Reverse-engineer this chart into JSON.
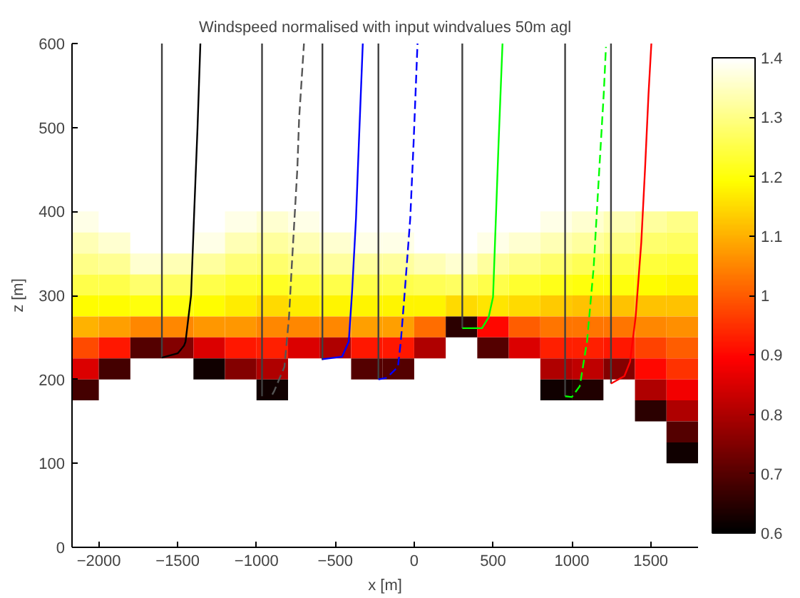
{
  "chart_data": {
    "type": "heatmap",
    "title": "Windspeed normalised with input windvalues 50m agl",
    "xlabel": "x [m]",
    "ylabel": "z [m]",
    "x": [
      -2100,
      -1900,
      -1700,
      -1500,
      -1300,
      -1100,
      -900,
      -700,
      -500,
      -300,
      -100,
      100,
      300,
      500,
      700,
      900,
      1100,
      1300,
      1500,
      1700
    ],
    "y": [
      387.5,
      362.5,
      337.5,
      312.5,
      287.5,
      262.5,
      237.5,
      212.5,
      187.5,
      162.5,
      137.5,
      112.5
    ],
    "cells": [
      [
        1.38,
        1.4,
        1.4,
        1.4,
        1.4,
        1.38,
        1.36,
        1.38,
        1.4,
        1.4,
        1.4,
        1.4,
        1.4,
        1.4,
        1.4,
        1.38,
        1.36,
        1.34,
        1.32,
        1.3
      ],
      [
        1.34,
        1.36,
        1.4,
        1.4,
        1.38,
        1.34,
        1.32,
        1.34,
        1.36,
        1.38,
        1.38,
        1.4,
        1.4,
        1.38,
        1.36,
        1.34,
        1.32,
        1.3,
        1.28,
        1.27
      ],
      [
        1.3,
        1.31,
        1.36,
        1.34,
        1.32,
        1.29,
        1.28,
        1.3,
        1.32,
        1.32,
        1.32,
        1.34,
        1.36,
        1.32,
        1.3,
        1.28,
        1.26,
        1.25,
        1.24,
        1.23
      ],
      [
        1.25,
        1.25,
        1.28,
        1.27,
        1.25,
        1.23,
        1.22,
        1.24,
        1.25,
        1.25,
        1.25,
        1.26,
        1.27,
        1.25,
        1.23,
        1.21,
        1.2,
        1.2,
        1.19,
        1.18
      ],
      [
        1.19,
        1.19,
        1.2,
        1.2,
        1.19,
        1.17,
        1.15,
        1.17,
        1.18,
        1.18,
        1.18,
        1.18,
        1.15,
        1.16,
        1.15,
        1.13,
        1.12,
        1.12,
        1.12,
        1.12
      ],
      [
        1.1,
        1.08,
        1.05,
        1.05,
        1.07,
        1.07,
        1.05,
        1.05,
        1.05,
        1.08,
        1.08,
        1.02,
        0.65,
        0.9,
        1.0,
        1.03,
        1.03,
        1.03,
        1.05,
        1.06
      ],
      [
        0.98,
        0.92,
        0.7,
        0.75,
        0.85,
        0.92,
        0.93,
        0.85,
        0.8,
        0.92,
        0.92,
        0.8,
        null,
        0.7,
        0.85,
        0.93,
        0.93,
        0.92,
        0.97,
        1.0
      ],
      [
        0.85,
        0.68,
        null,
        null,
        0.62,
        0.75,
        0.8,
        null,
        null,
        0.7,
        0.7,
        null,
        null,
        null,
        null,
        0.8,
        0.82,
        0.75,
        0.9,
        0.95
      ],
      [
        0.68,
        null,
        null,
        null,
        null,
        null,
        0.62,
        null,
        null,
        null,
        null,
        null,
        null,
        null,
        null,
        0.62,
        0.64,
        null,
        0.8,
        0.88
      ],
      [
        null,
        null,
        null,
        null,
        null,
        null,
        null,
        null,
        null,
        null,
        null,
        null,
        null,
        null,
        null,
        null,
        null,
        null,
        0.65,
        0.8
      ],
      [
        null,
        null,
        null,
        null,
        null,
        null,
        null,
        null,
        null,
        null,
        null,
        null,
        null,
        null,
        null,
        null,
        null,
        null,
        null,
        0.7
      ],
      [
        null,
        null,
        null,
        null,
        null,
        null,
        null,
        null,
        null,
        null,
        null,
        null,
        null,
        null,
        null,
        null,
        null,
        null,
        null,
        0.62
      ]
    ],
    "clim": [
      0.6,
      1.4
    ],
    "cticks": [
      0.6,
      0.7,
      0.8,
      0.9,
      {
        "value": 1.0,
        "label": "1"
      },
      1.1,
      1.2,
      1.3,
      1.4
    ],
    "xlim": [
      -2170,
      1800
    ],
    "ylim": [
      0,
      600
    ],
    "xticks": [
      -2000,
      -1500,
      -1000,
      -500,
      0,
      500,
      1000,
      1500
    ],
    "yticks": [
      0,
      100,
      200,
      300,
      400,
      500,
      600
    ],
    "grid": false,
    "series": [
      {
        "type": "line",
        "color": "#404040",
        "line_style": "solid",
        "x": [
          -1600,
          -1600
        ],
        "values": [
          226,
          600
        ]
      },
      {
        "type": "line",
        "color": "#404040",
        "line_style": "solid",
        "x": [
          -965,
          -965
        ],
        "values": [
          180,
          600
        ]
      },
      {
        "type": "line",
        "color": "#404040",
        "line_style": "solid",
        "x": [
          -582,
          -582
        ],
        "values": [
          223,
          600
        ]
      },
      {
        "type": "line",
        "color": "#404040",
        "line_style": "solid",
        "x": [
          -227,
          -227
        ],
        "values": [
          200,
          600
        ]
      },
      {
        "type": "line",
        "color": "#404040",
        "line_style": "solid",
        "x": [
          305,
          305
        ],
        "values": [
          261,
          600
        ]
      },
      {
        "type": "line",
        "color": "#404040",
        "line_style": "solid",
        "x": [
          957,
          957
        ],
        "values": [
          180,
          600
        ]
      },
      {
        "type": "line",
        "color": "#404040",
        "line_style": "solid",
        "x": [
          1248,
          1248
        ],
        "values": [
          195,
          600
        ]
      },
      {
        "type": "line",
        "color": "#000000",
        "line_style": "solid",
        "x": [
          -1600,
          -1500,
          -1460,
          -1450,
          -1415,
          -1395,
          -1374,
          -1356
        ],
        "values": [
          226,
          231,
          240,
          245,
          300,
          400,
          500,
          600
        ]
      },
      {
        "type": "line",
        "color": "#555555",
        "line_style": "dashed",
        "x": [
          -900,
          -888,
          -823,
          -794,
          -777,
          -759,
          -741,
          -730,
          -699
        ],
        "values": [
          182,
          186,
          215,
          274,
          333,
          392,
          451,
          510,
          600
        ]
      },
      {
        "type": "line",
        "color": "#0000ff",
        "line_style": "solid",
        "x": [
          -582,
          -458,
          -415,
          -394,
          -369,
          -351,
          -326
        ],
        "values": [
          224,
          227,
          245,
          304,
          392,
          481,
          600
        ]
      },
      {
        "type": "line",
        "color": "#0000ff",
        "line_style": "dashed",
        "x": [
          -227,
          -173,
          -103,
          -85,
          -60,
          -25,
          -4,
          21
        ],
        "values": [
          200,
          202,
          215,
          245,
          304,
          392,
          481,
          600
        ]
      },
      {
        "type": "line",
        "color": "#00ff00",
        "line_style": "solid",
        "x": [
          305,
          430,
          472,
          500,
          518,
          535,
          560
        ],
        "values": [
          261,
          261,
          274,
          298,
          392,
          481,
          600
        ]
      },
      {
        "type": "line",
        "color": "#00ff00",
        "line_style": "dashed",
        "x": [
          957,
          1000,
          1050,
          1096,
          1138,
          1174,
          1202,
          1216
        ],
        "values": [
          180,
          179,
          192,
          245,
          333,
          451,
          540,
          596
        ]
      },
      {
        "type": "line",
        "color": "#ff0000",
        "line_style": "solid",
        "x": [
          1248,
          1333,
          1369,
          1404,
          1440,
          1464,
          1486,
          1504
        ],
        "values": [
          195,
          204,
          221,
          274,
          363,
          451,
          540,
          600
        ]
      }
    ]
  }
}
